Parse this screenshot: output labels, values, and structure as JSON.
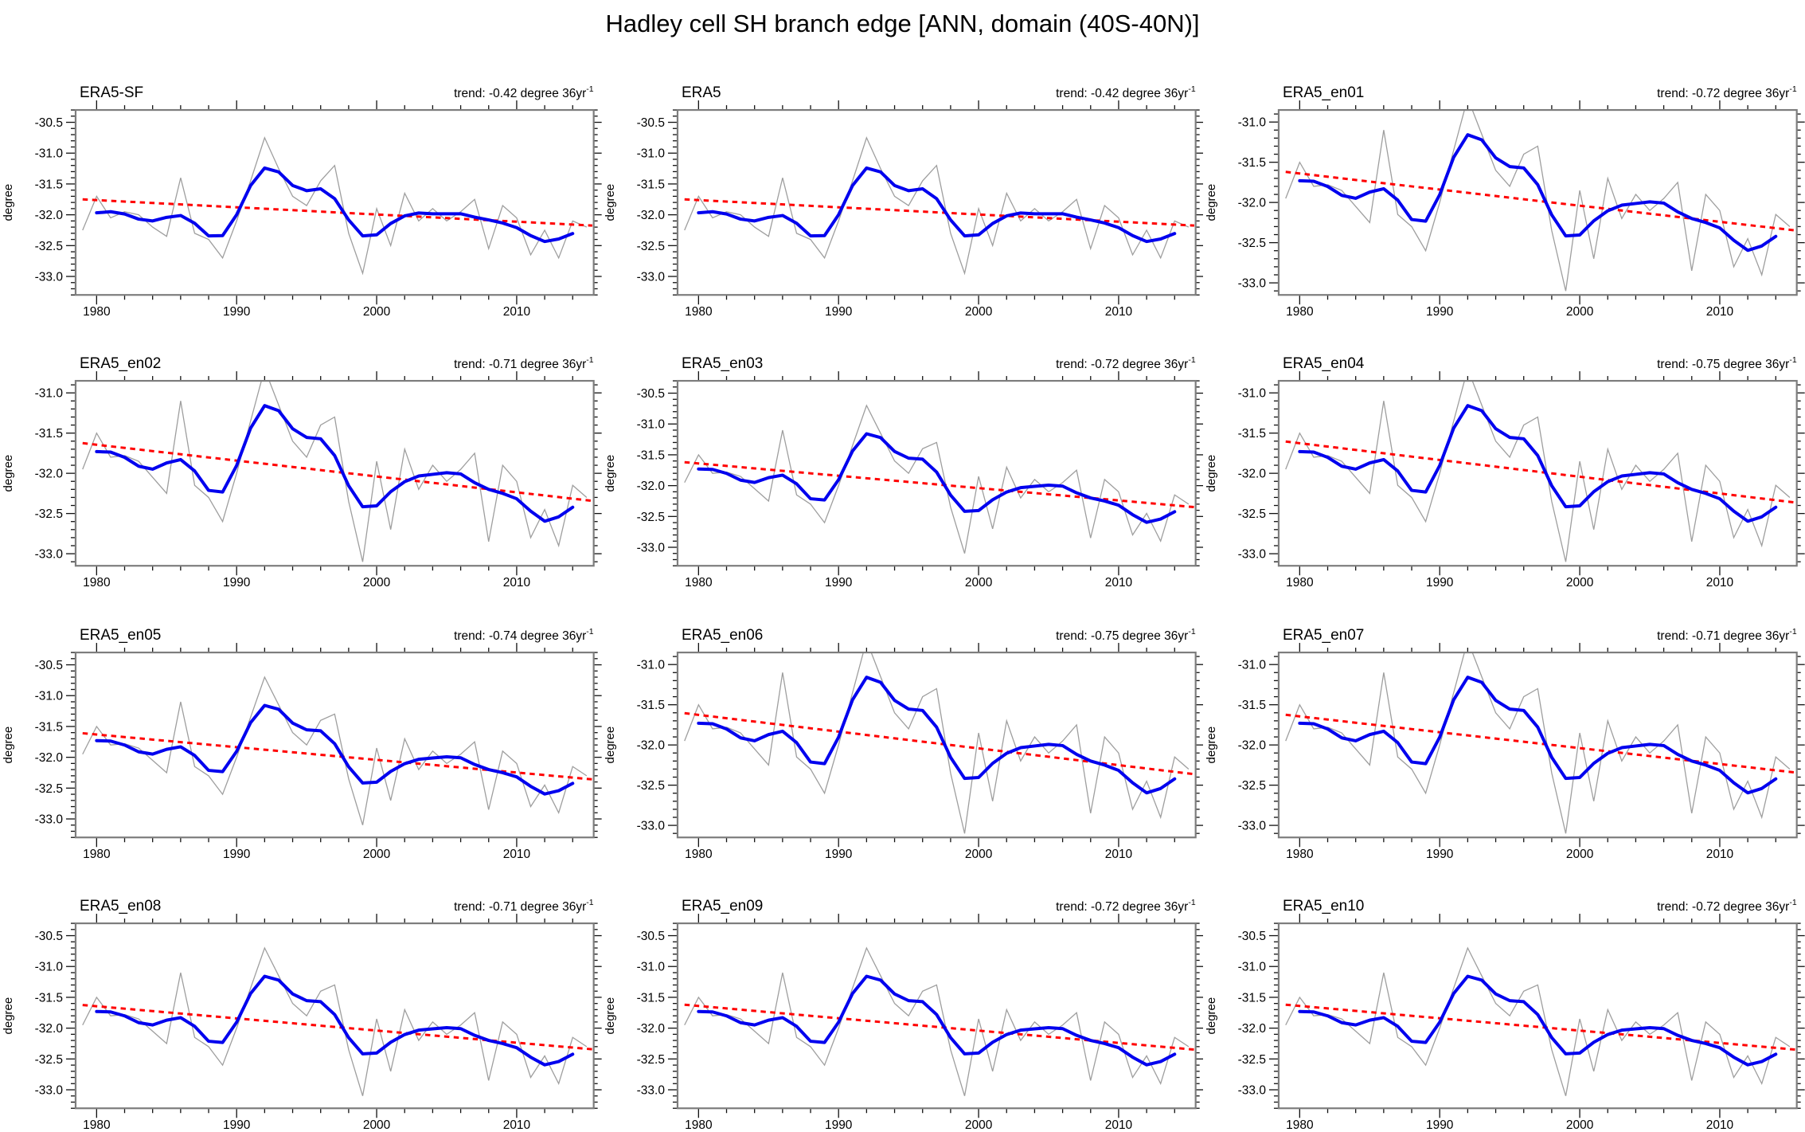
{
  "chart_data": {
    "type": "line",
    "title": "Hadley cell SH branch edge [ANN, domain (40S-40N)]",
    "layout": {
      "grid_rows": 4,
      "grid_cols": 3,
      "grid_lines": false,
      "legend": "none",
      "tick_style": "outward, all four sides"
    },
    "x_start": 1979,
    "x_end": 2015,
    "x_frame": [
      1978.5,
      2015.5
    ],
    "xticks": [
      1980,
      1990,
      2000,
      2010
    ],
    "x_minor_step": 2,
    "ylabel": "degree",
    "y_minor_step": 0.1,
    "colors": {
      "annual_line": "#9e9e9e",
      "smoothed_line": "#0000ee",
      "trend_line": "#ff0000",
      "frame": "#7d7d7d",
      "ticks": "#111111"
    },
    "trend_label": {
      "prefix": "trend: ",
      "unit": " degree 36yr",
      "sup": "-1"
    },
    "smoothed_line_definition": "5-point weighted running mean (1,3,4,3,1)/12 of annual series, plotted 1980-2014",
    "series_sets": {
      "reanalysis_annual": [
        -32.25,
        -31.7,
        -32.05,
        -31.95,
        -32.0,
        -32.2,
        -32.35,
        -31.4,
        -32.3,
        -32.4,
        -32.7,
        -32.1,
        -31.45,
        -30.75,
        -31.25,
        -31.7,
        -31.85,
        -31.45,
        -31.2,
        -32.3,
        -32.95,
        -31.9,
        -32.5,
        -31.65,
        -32.1,
        -31.9,
        -32.1,
        -31.95,
        -31.75,
        -32.55,
        -31.85,
        -32.05,
        -32.65,
        -32.25,
        -32.7,
        -32.1,
        -32.2
      ],
      "ensemble_annual": [
        -31.95,
        -31.5,
        -31.8,
        -31.78,
        -31.85,
        -32.05,
        -32.25,
        -31.1,
        -32.15,
        -32.3,
        -32.6,
        -32.0,
        -31.35,
        -30.7,
        -31.15,
        -31.6,
        -31.8,
        -31.4,
        -31.3,
        -32.35,
        -33.1,
        -31.85,
        -32.7,
        -31.7,
        -32.2,
        -31.9,
        -32.1,
        -31.95,
        -31.75,
        -32.85,
        -31.9,
        -32.1,
        -32.8,
        -32.45,
        -32.9,
        -32.15,
        -32.3
      ]
    },
    "panels": [
      {
        "title": "ERA5-SF",
        "trend_per_36yr": -0.42,
        "trend_mid_1997": -31.96,
        "ylim": [
          -33.3,
          -30.3
        ],
        "yticks": [
          -30.5,
          -31.0,
          -31.5,
          -32.0,
          -32.5,
          -33.0
        ],
        "series_set": "reanalysis_annual"
      },
      {
        "title": "ERA5",
        "trend_per_36yr": -0.42,
        "trend_mid_1997": -31.96,
        "ylim": [
          -33.3,
          -30.3
        ],
        "yticks": [
          -30.5,
          -31.0,
          -31.5,
          -32.0,
          -32.5,
          -33.0
        ],
        "series_set": "reanalysis_annual"
      },
      {
        "title": "ERA5_en01",
        "trend_per_36yr": -0.72,
        "trend_mid_1997": -31.98,
        "ylim": [
          -33.15,
          -30.85
        ],
        "yticks": [
          -31.0,
          -31.5,
          -32.0,
          -32.5,
          -33.0
        ],
        "series_set": "ensemble_annual"
      },
      {
        "title": "ERA5_en02",
        "trend_per_36yr": -0.71,
        "trend_mid_1997": -31.98,
        "ylim": [
          -33.15,
          -30.85
        ],
        "yticks": [
          -31.0,
          -31.5,
          -32.0,
          -32.5,
          -33.0
        ],
        "series_set": "ensemble_annual"
      },
      {
        "title": "ERA5_en03",
        "trend_per_36yr": -0.72,
        "trend_mid_1997": -31.98,
        "ylim": [
          -33.3,
          -30.3
        ],
        "yticks": [
          -30.5,
          -31.0,
          -31.5,
          -32.0,
          -32.5,
          -33.0
        ],
        "series_set": "ensemble_annual"
      },
      {
        "title": "ERA5_en04",
        "trend_per_36yr": -0.75,
        "trend_mid_1997": -31.98,
        "ylim": [
          -33.15,
          -30.85
        ],
        "yticks": [
          -31.0,
          -31.5,
          -32.0,
          -32.5,
          -33.0
        ],
        "series_set": "ensemble_annual"
      },
      {
        "title": "ERA5_en05",
        "trend_per_36yr": -0.74,
        "trend_mid_1997": -31.98,
        "ylim": [
          -33.3,
          -30.3
        ],
        "yticks": [
          -30.5,
          -31.0,
          -31.5,
          -32.0,
          -32.5,
          -33.0
        ],
        "series_set": "ensemble_annual"
      },
      {
        "title": "ERA5_en06",
        "trend_per_36yr": -0.75,
        "trend_mid_1997": -31.98,
        "ylim": [
          -33.15,
          -30.85
        ],
        "yticks": [
          -31.0,
          -31.5,
          -32.0,
          -32.5,
          -33.0
        ],
        "series_set": "ensemble_annual"
      },
      {
        "title": "ERA5_en07",
        "trend_per_36yr": -0.71,
        "trend_mid_1997": -31.98,
        "ylim": [
          -33.15,
          -30.85
        ],
        "yticks": [
          -31.0,
          -31.5,
          -32.0,
          -32.5,
          -33.0
        ],
        "series_set": "ensemble_annual"
      },
      {
        "title": "ERA5_en08",
        "trend_per_36yr": -0.71,
        "trend_mid_1997": -31.98,
        "ylim": [
          -33.3,
          -30.3
        ],
        "yticks": [
          -30.5,
          -31.0,
          -31.5,
          -32.0,
          -32.5,
          -33.0
        ],
        "series_set": "ensemble_annual"
      },
      {
        "title": "ERA5_en09",
        "trend_per_36yr": -0.72,
        "trend_mid_1997": -31.98,
        "ylim": [
          -33.3,
          -30.3
        ],
        "yticks": [
          -30.5,
          -31.0,
          -31.5,
          -32.0,
          -32.5,
          -33.0
        ],
        "series_set": "ensemble_annual"
      },
      {
        "title": "ERA5_en10",
        "trend_per_36yr": -0.72,
        "trend_mid_1997": -31.98,
        "ylim": [
          -33.3,
          -30.3
        ],
        "yticks": [
          -30.5,
          -31.0,
          -31.5,
          -32.0,
          -32.5,
          -33.0
        ],
        "series_set": "ensemble_annual"
      }
    ]
  }
}
